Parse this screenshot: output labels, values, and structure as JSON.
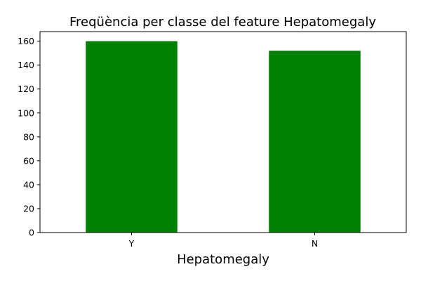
{
  "chart_data": {
    "type": "bar",
    "title": "Freqüència per classe del feature Hepatomegaly",
    "xlabel": "Hepatomegaly",
    "ylabel": "",
    "categories": [
      "Y",
      "N"
    ],
    "values": [
      160,
      152
    ],
    "ylim": [
      0,
      168
    ],
    "yticks": [
      0,
      20,
      40,
      60,
      80,
      100,
      120,
      140,
      160
    ],
    "bar_color": "#008000",
    "grid": false,
    "legend": "none"
  }
}
